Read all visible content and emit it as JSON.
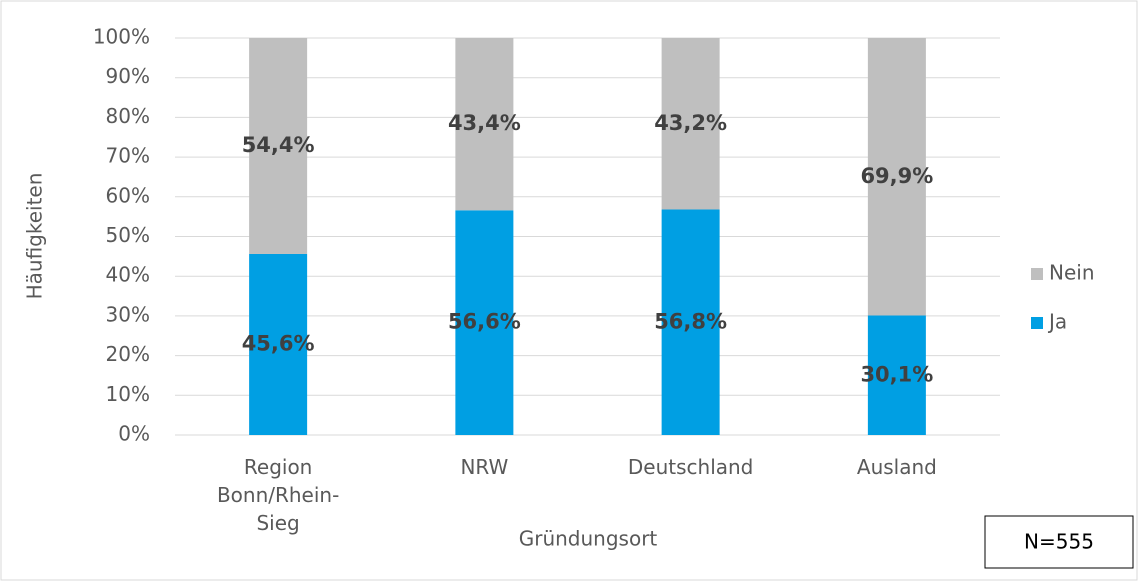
{
  "chart_data": {
    "type": "stacked_bar",
    "y_label": "Häufigkeiten",
    "x_label": "Gründungsort",
    "annotation": "N=555",
    "categories": [
      "Region Bonn/Rhein-Sieg",
      "NRW",
      "Deutschland",
      "Ausland"
    ],
    "series": [
      {
        "name": "Ja",
        "color": "#009fe3",
        "values": [
          45.6,
          56.6,
          56.8,
          30.1
        ],
        "value_labels": [
          "45,6%",
          "56,6%",
          "56,8%",
          "30,1%"
        ]
      },
      {
        "name": "Nein",
        "color": "#bfbfbf",
        "values": [
          54.4,
          43.4,
          43.2,
          69.9
        ],
        "value_labels": [
          "54,4%",
          "43,4%",
          "43,2%",
          "69,9%"
        ]
      }
    ],
    "ylim": [
      0,
      100
    ],
    "yticks": [
      {
        "value": 0,
        "label": "0%"
      },
      {
        "value": 10,
        "label": "10%"
      },
      {
        "value": 20,
        "label": "20%"
      },
      {
        "value": 30,
        "label": "30%"
      },
      {
        "value": 40,
        "label": "40%"
      },
      {
        "value": 50,
        "label": "50%"
      },
      {
        "value": 60,
        "label": "60%"
      },
      {
        "value": 70,
        "label": "70%"
      },
      {
        "value": 80,
        "label": "80%"
      },
      {
        "value": 90,
        "label": "90%"
      },
      {
        "value": 100,
        "label": "100%"
      }
    ],
    "grid": true,
    "legend": "right"
  }
}
